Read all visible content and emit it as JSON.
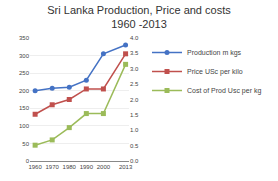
{
  "chart_data": {
    "type": "line",
    "title": "Sri Lanka Production, Price and costs\n1960 -2013",
    "x": [
      1960,
      1970,
      1980,
      1990,
      2000,
      2013
    ],
    "xlim": [
      1957,
      2015
    ],
    "xticks": [
      1960,
      1970,
      1980,
      1990,
      2000,
      2013
    ],
    "series": [
      {
        "name": "Production m kgs",
        "color": "#4472C4",
        "marker": "circle",
        "values": [
          200,
          207,
          210,
          230,
          305,
          330
        ]
      },
      {
        "name": "Price USc per kilo",
        "color": "#C0504D",
        "marker": "square",
        "values": [
          133,
          160,
          175,
          205,
          205,
          305
        ]
      },
      {
        "name": "Cost of Prod Usc per kg",
        "color": "#9BBB59",
        "marker": "square",
        "values": [
          45,
          60,
          95,
          135,
          135,
          275
        ]
      }
    ],
    "ylim": [
      0,
      350
    ],
    "yticks": [
      0,
      50,
      100,
      150,
      200,
      250,
      300,
      350
    ],
    "y2lim": [
      0,
      4
    ],
    "y2ticks": [
      {
        "value": 0,
        "label": "0.0"
      },
      {
        "value": 0.5,
        "label": "0.5"
      },
      {
        "value": 1,
        "label": "1.0"
      },
      {
        "value": 1.5,
        "label": "1.5"
      },
      {
        "value": 2,
        "label": "2.0"
      },
      {
        "value": 2.5,
        "label": "2.5"
      },
      {
        "value": 3,
        "label": "3.0"
      },
      {
        "value": 3.5,
        "label": "3.5"
      },
      {
        "value": 4,
        "label": "4.0"
      }
    ],
    "grid": true,
    "legend": "right"
  }
}
